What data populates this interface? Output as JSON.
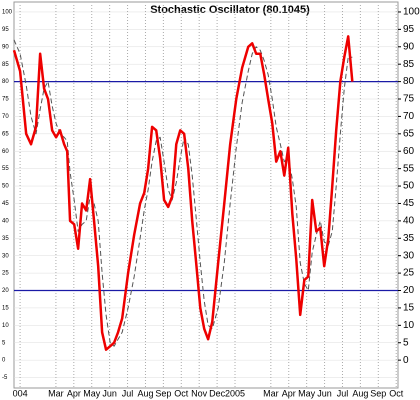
{
  "chart_data": {
    "type": "line",
    "title": "Stochastic Oscillator (80.1045)",
    "x": [
      -0.34,
      0,
      0.34,
      0.61,
      0.89,
      1.12,
      1.34,
      1.56,
      1.79,
      2.01,
      2.23,
      2.46,
      2.63,
      2.79,
      3.02,
      3.24,
      3.46,
      3.69,
      3.91,
      4.13,
      4.36,
      4.58,
      4.8,
      5.03,
      5.25,
      5.47,
      5.7,
      6.03,
      6.37,
      6.7,
      6.93,
      7.15,
      7.37,
      7.6,
      7.82,
      8.04,
      8.27,
      8.49,
      8.72,
      8.94,
      9.16,
      9.39,
      9.61,
      9.83,
      10.06,
      10.28,
      10.5,
      10.73,
      11.06,
      11.4,
      11.73,
      12.07,
      12.4,
      12.74,
      12.96,
      13.18,
      13.41,
      13.63,
      13.85,
      14.08,
      14.3,
      14.53,
      14.75,
      14.97,
      15.2,
      15.42,
      15.64,
      15.87,
      16.09,
      16.31,
      16.54,
      16.76,
      16.98,
      17.21,
      17.43,
      17.65,
      17.88,
      18.1,
      18.32,
      18.55
    ],
    "series": [
      {
        "color": "#ee0000",
        "width": 2.5,
        "dashed": false,
        "values": [
          89,
          83,
          65,
          62,
          67,
          88,
          78,
          75,
          66,
          64,
          66,
          62,
          60,
          40,
          39,
          32,
          45,
          43,
          52,
          40,
          27,
          8,
          3,
          4,
          5,
          8,
          12,
          25,
          36,
          45,
          48,
          55,
          67,
          66,
          58,
          46,
          44,
          47,
          62,
          66,
          65,
          55,
          40,
          28,
          15,
          9,
          6,
          11,
          28,
          45,
          62,
          75,
          84,
          90,
          91,
          88,
          88,
          82,
          75,
          68,
          57,
          60,
          53,
          61,
          42,
          29,
          13,
          23,
          24,
          46,
          37,
          38,
          27,
          35,
          50,
          66,
          80,
          87,
          93,
          80
        ]
      },
      {
        "color": "#555555",
        "width": 1,
        "dashed": true,
        "values": [
          92,
          88,
          79,
          70,
          65,
          72,
          78,
          80,
          73,
          68,
          65,
          64,
          63,
          54,
          46,
          37,
          39,
          40,
          47,
          45,
          40,
          25,
          13,
          5,
          4,
          6,
          8,
          15,
          24,
          35,
          43,
          49,
          57,
          63,
          64,
          57,
          49,
          46,
          51,
          58,
          64,
          62,
          53,
          41,
          28,
          17,
          10,
          9,
          15,
          28,
          45,
          61,
          74,
          83,
          88,
          90,
          89,
          86,
          82,
          75,
          67,
          62,
          57,
          58,
          52,
          44,
          28,
          22,
          20,
          31,
          36,
          40,
          34,
          33,
          37,
          50,
          65,
          78,
          87,
          87
        ]
      }
    ],
    "hlines": [
      80,
      20
    ],
    "hline_color": "#1a1aa6",
    "xlim": [
      -0.34,
      21.1
    ],
    "xticks": [
      {
        "value": 0,
        "label": "004"
      },
      {
        "value": 2,
        "label": "Mar"
      },
      {
        "value": 3,
        "label": "Apr"
      },
      {
        "value": 4,
        "label": "May"
      },
      {
        "value": 5,
        "label": "Jun"
      },
      {
        "value": 6,
        "label": "Jul"
      },
      {
        "value": 7,
        "label": "Aug"
      },
      {
        "value": 8,
        "label": "Sep"
      },
      {
        "value": 9,
        "label": "Oct"
      },
      {
        "value": 10,
        "label": "Nov"
      },
      {
        "value": 11,
        "label": "Dec"
      },
      {
        "value": 12,
        "label": "2005"
      },
      {
        "value": 14,
        "label": "Mar"
      },
      {
        "value": 15,
        "label": "Apr"
      },
      {
        "value": 16,
        "label": "May"
      },
      {
        "value": 17,
        "label": "Jun"
      },
      {
        "value": 18,
        "label": "Jul"
      },
      {
        "value": 19,
        "label": "Aug"
      },
      {
        "value": 20,
        "label": "Sep"
      },
      {
        "value": 21,
        "label": "Oct"
      }
    ],
    "ylim": [
      -8,
      102
    ],
    "yticks": [
      -5,
      0,
      5,
      10,
      15,
      20,
      25,
      30,
      35,
      40,
      45,
      50,
      55,
      60,
      65,
      70,
      75,
      80,
      85,
      90,
      95,
      100
    ],
    "y2lim": [
      -8,
      102
    ],
    "y2ticks": [
      0,
      5,
      10,
      15,
      20,
      25,
      30,
      35,
      40,
      45,
      50,
      55,
      60,
      65,
      70,
      75,
      80,
      85,
      90,
      95,
      100
    ],
    "grid": true
  }
}
